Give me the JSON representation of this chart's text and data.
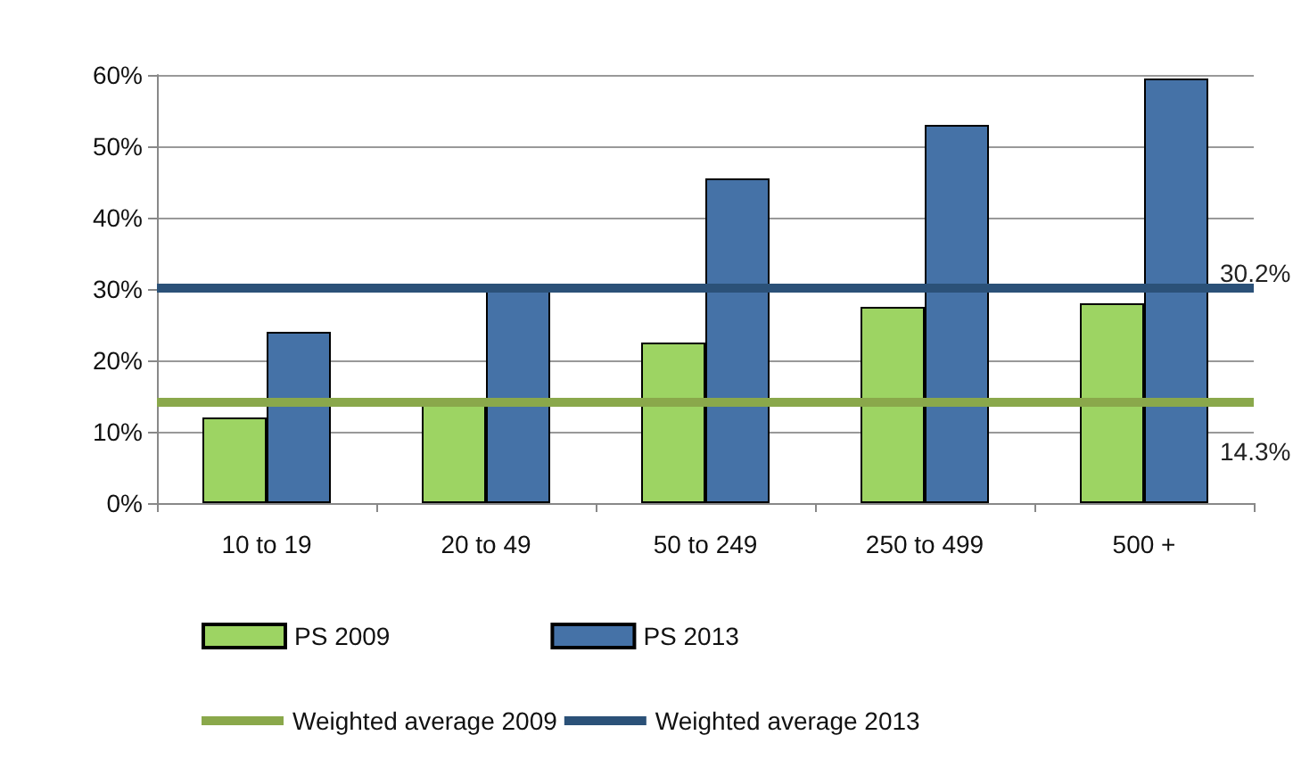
{
  "chart_data": {
    "type": "bar",
    "categories": [
      "10 to 19",
      "20 to 49",
      "50 to 249",
      "250 to 499",
      "500 +"
    ],
    "series": [
      {
        "name": "PS 2009",
        "color": "#9dd463",
        "values": [
          12,
          14.5,
          22.5,
          27.5,
          28
        ]
      },
      {
        "name": "PS 2013",
        "color": "#4572a7",
        "values": [
          24,
          30.5,
          45.5,
          53,
          59.5
        ]
      }
    ],
    "ylim": [
      0,
      60
    ],
    "yticks": [
      {
        "value": 0,
        "label": "0%"
      },
      {
        "value": 10,
        "label": "10%"
      },
      {
        "value": 20,
        "label": "20%"
      },
      {
        "value": 30,
        "label": "30%"
      },
      {
        "value": 40,
        "label": "40%"
      },
      {
        "value": 50,
        "label": "50%"
      },
      {
        "value": 60,
        "label": "60%"
      }
    ],
    "ref_lines": [
      {
        "axis": "y",
        "value": 14.3,
        "label": "Weighted average 2009",
        "color": "#8aa84b"
      },
      {
        "axis": "y",
        "value": 30.2,
        "label": "Weighted average 2013",
        "color": "#2b5178"
      }
    ],
    "annotations": [
      "14.3%",
      "30.2%"
    ],
    "grid": "y",
    "legend": "bottom"
  }
}
